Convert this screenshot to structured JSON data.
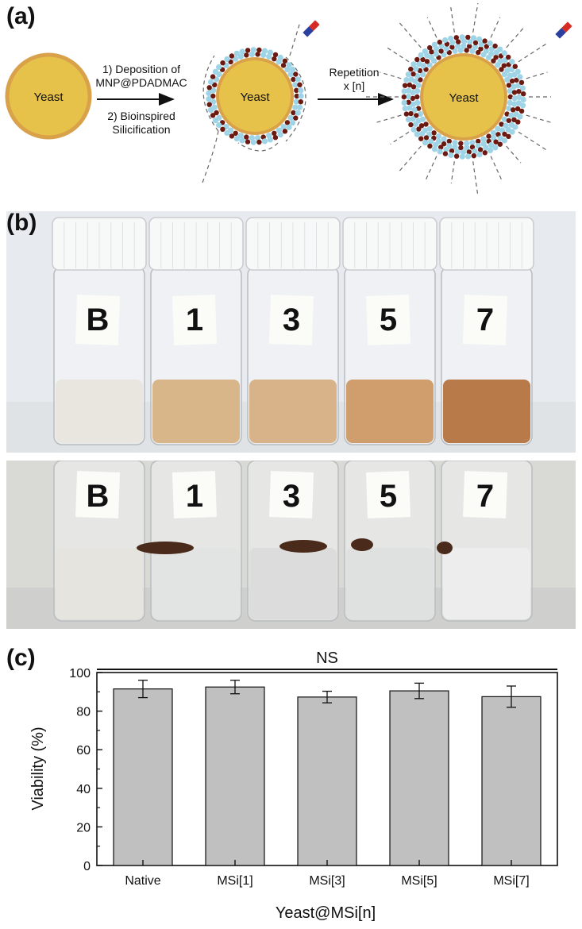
{
  "panel_labels": {
    "a": "(a)",
    "b": "(b)",
    "c": "(c)"
  },
  "schematic": {
    "cell_label": "Yeast",
    "step1": "1) Deposition of",
    "step1_b": "MNP@PDADMAC",
    "step2": "2) Bioinspired",
    "step2_b": "Silicification",
    "repeat": "Repetition",
    "repeat_b": "x [n]"
  },
  "vials": {
    "labels": [
      "B",
      "1",
      "3",
      "5",
      "7"
    ],
    "liquid_top": [
      "#e8e6de",
      "#d9b58a",
      "#d8b38a",
      "#cf9e6c",
      "#b87a48"
    ],
    "liquid_bottom": [
      "#e6e4de",
      "#e2e4e4",
      "#dcdcdc",
      "#dfe1e1",
      "#ecedec"
    ]
  },
  "colors": {
    "bar": "#c0c0c0",
    "yeast": "#e7c24a",
    "yeast_rim": "#d9a24a",
    "silica": "#9fd3e6",
    "mnp": "#6b1a12"
  },
  "chart_data": {
    "type": "bar",
    "categories": [
      "Native",
      "MSi[1]",
      "MSi[3]",
      "MSi[5]",
      "MSi[7]"
    ],
    "values": [
      91.5,
      92.5,
      87.3,
      90.5,
      87.5
    ],
    "errors": [
      4.5,
      3.5,
      3.0,
      4.0,
      5.5
    ],
    "xlabel": "Yeast@MSi[n]",
    "ylabel": "Viability (%)",
    "ylim": [
      0,
      100
    ],
    "yticks": [
      "0",
      "20",
      "40",
      "60",
      "80",
      "100"
    ],
    "significance": "NS"
  }
}
